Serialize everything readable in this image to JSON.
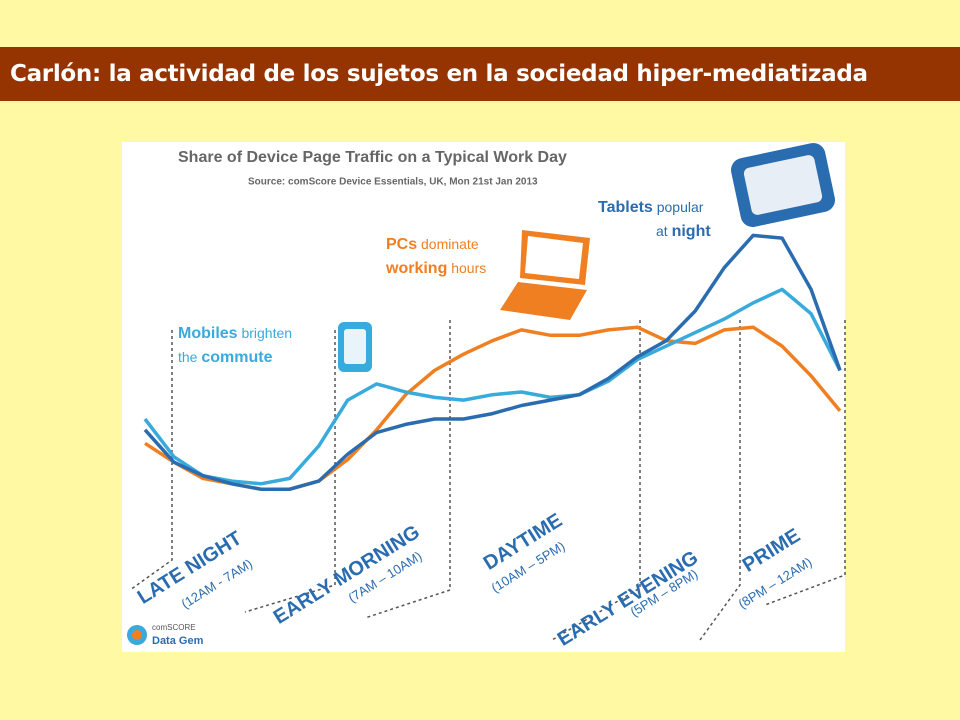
{
  "header": {
    "title": "Carlón: la actividad de los sujetos en la sociedad hiper-mediatizada"
  },
  "chart_data": {
    "type": "line",
    "title": "Share of Device Page Traffic on a Typical Work Day",
    "subtitle": "Source: comScore Device Essentials, UK, Mon 21st Jan 2013",
    "categories": [
      null,
      null,
      null,
      null,
      null,
      null,
      null,
      null,
      null,
      null,
      null,
      null,
      null,
      null,
      null,
      null,
      null,
      null,
      null,
      null,
      null,
      null,
      null,
      null,
      null
    ],
    "ylim": [
      0,
      100
    ],
    "series": [
      {
        "name": "PCs",
        "color": "#f07f22",
        "values": [
          21,
          14,
          8,
          6,
          4,
          4,
          7,
          15,
          26,
          39,
          48,
          54,
          59,
          63,
          61,
          61,
          63,
          64,
          59,
          58,
          63,
          64,
          57,
          46,
          33
        ]
      },
      {
        "name": "Mobiles",
        "color": "#38aadb",
        "values": [
          30,
          16,
          9,
          7,
          6,
          8,
          20,
          37,
          43,
          40,
          38,
          37,
          39,
          40,
          38,
          39,
          44,
          52,
          57,
          62,
          67,
          73,
          78,
          69,
          48
        ]
      },
      {
        "name": "Tablets",
        "color": "#2a6cb0",
        "values": [
          26,
          14,
          9,
          6,
          4,
          4,
          7,
          17,
          25,
          28,
          30,
          30,
          32,
          35,
          37,
          39,
          45,
          53,
          59,
          70,
          86,
          98,
          97,
          78,
          48
        ]
      }
    ],
    "annotations": [
      {
        "color": "#2a6cb0",
        "lines": [
          [
            {
              "text": "Tablets",
              "bold": true
            },
            {
              "text": " popular",
              "bold": false
            }
          ],
          [
            {
              "text": "at ",
              "bold": false
            },
            {
              "text": "night",
              "bold": true
            }
          ]
        ]
      },
      {
        "color": "#f07f22",
        "lines": [
          [
            {
              "text": "PCs",
              "bold": true
            },
            {
              "text": " dominate",
              "bold": false
            }
          ],
          [
            {
              "text": "working",
              "bold": true
            },
            {
              "text": " hours",
              "bold": false
            }
          ]
        ]
      },
      {
        "color": "#38aadb",
        "lines": [
          [
            {
              "text": "Mobiles",
              "bold": true
            },
            {
              "text": "  brighten",
              "bold": false
            }
          ],
          [
            {
              "text": "the ",
              "bold": false
            },
            {
              "text": "commute",
              "bold": true
            }
          ]
        ]
      }
    ],
    "periods": [
      {
        "name": "LATE NIGHT",
        "hours": "(12AM - 7AM)"
      },
      {
        "name": "EARLY MORNING",
        "hours": "(7AM – 10AM)"
      },
      {
        "name": "DAYTIME",
        "hours": "(10AM – 5PM)"
      },
      {
        "name": "EARLY EVENING",
        "hours": "(5PM – 8PM)"
      },
      {
        "name": "PRIME",
        "hours": "(8PM – 12AM)"
      }
    ],
    "logo": [
      "comSCORE",
      "Data Gem"
    ]
  }
}
